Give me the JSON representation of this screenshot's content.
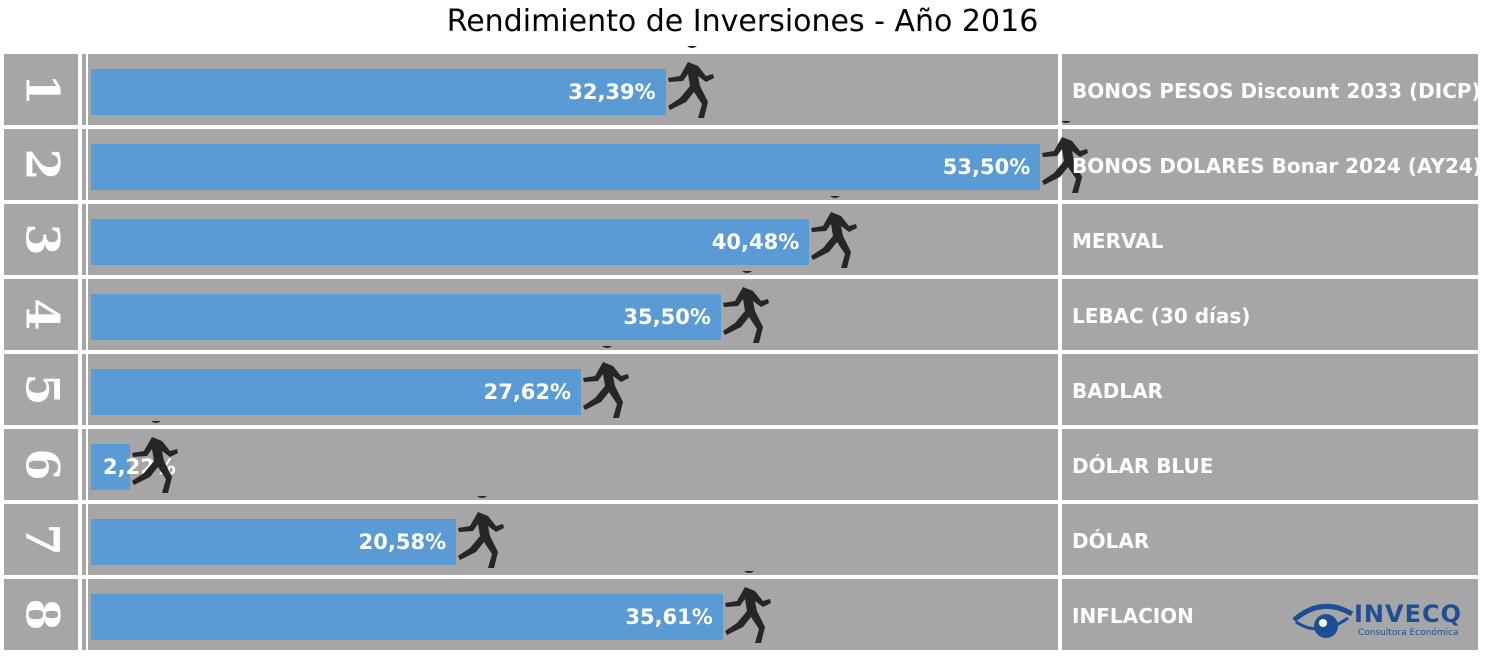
{
  "chart_data": {
    "type": "bar",
    "orientation": "horizontal",
    "title": "Rendimiento de Inversiones - Año 2016",
    "xlim": [
      0,
      54.5
    ],
    "lane_numbers": [
      "1",
      "2",
      "3",
      "4",
      "5",
      "6",
      "7",
      "8"
    ],
    "categories": [
      "BONOS PESOS Discount 2033 (DICP)",
      "BONOS DOLARES Bonar 2024 (AY24)",
      "MERVAL",
      "LEBAC (30 días)",
      "BADLAR",
      "DÓLAR BLUE",
      "DÓLAR",
      "INFLACION"
    ],
    "values": [
      32.39,
      53.5,
      40.48,
      35.5,
      27.62,
      2.22,
      20.58,
      35.61
    ],
    "value_labels": [
      "32,39%",
      "53,50%",
      "40,48%",
      "35,50%",
      "27,62%",
      "2,22%",
      "20,58%",
      "35,61%"
    ],
    "colors": {
      "bar": "#5b9bd5",
      "lane": "#a6a6a6",
      "runner": "#262626",
      "text": "#ffffff"
    }
  },
  "logo": {
    "name": "INVECQ",
    "subtitle": "Consultora Económica",
    "color": "#1f4e99"
  }
}
